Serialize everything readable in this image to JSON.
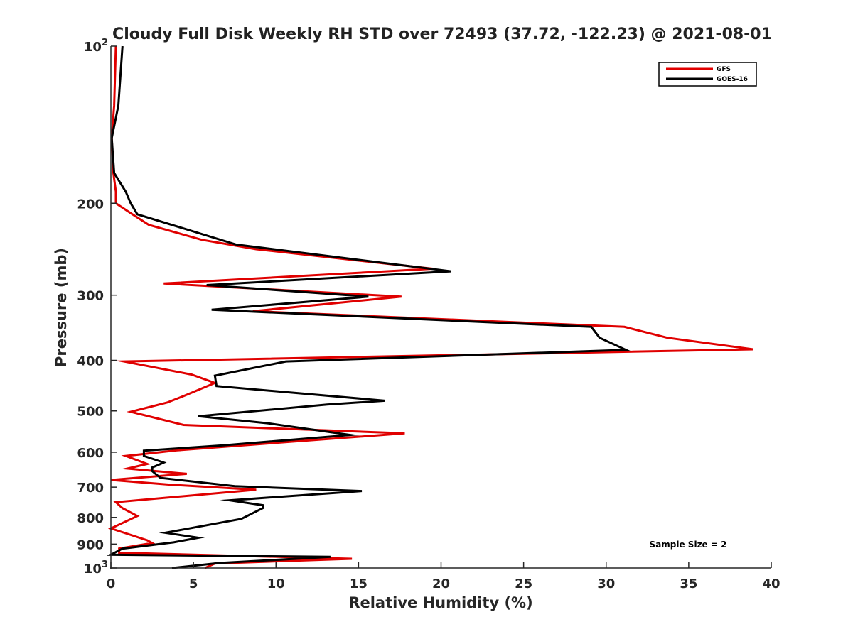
{
  "chart_data": {
    "type": "line",
    "title": "Cloudy Full Disk Weekly RH STD over 72493 (37.72, -122.23) @ 2021-08-01",
    "xlabel": "Relative Humidity (%)",
    "ylabel": "Pressure (mb)",
    "xlim": [
      0,
      40
    ],
    "ylim": [
      100,
      1000
    ],
    "y_scale": "log",
    "y_reversed": true,
    "x_ticks": [
      0,
      5,
      10,
      15,
      20,
      25,
      30,
      35,
      40
    ],
    "y_ticks": [
      {
        "value": 100,
        "label": "10",
        "sup": "2"
      },
      {
        "value": 200,
        "label": "200"
      },
      {
        "value": 300,
        "label": "300"
      },
      {
        "value": 400,
        "label": "400"
      },
      {
        "value": 500,
        "label": "500"
      },
      {
        "value": 600,
        "label": "600"
      },
      {
        "value": 700,
        "label": "700"
      },
      {
        "value": 800,
        "label": "800"
      },
      {
        "value": 900,
        "label": "900"
      },
      {
        "value": 1000,
        "label": "10",
        "sup": "3"
      }
    ],
    "grid": false,
    "legend_position": "top-right",
    "annotation": "Sample Size = 2",
    "series": [
      {
        "name": "GFS",
        "color": "#e00000",
        "points": [
          [
            0.3,
            100
          ],
          [
            0.2,
            130
          ],
          [
            0.05,
            150
          ],
          [
            0.15,
            175
          ],
          [
            0.3,
            190
          ],
          [
            0.3,
            200
          ],
          [
            1.3,
            210
          ],
          [
            2.3,
            220
          ],
          [
            5.5,
            235
          ],
          [
            8.8,
            245
          ],
          [
            19.5,
            267
          ],
          [
            3.2,
            285
          ],
          [
            17.6,
            302
          ],
          [
            8.6,
            322
          ],
          [
            31.1,
            345
          ],
          [
            33.7,
            362
          ],
          [
            38.9,
            381
          ],
          [
            0.8,
            402
          ],
          [
            4.9,
            426
          ],
          [
            6.3,
            442
          ],
          [
            4.5,
            467
          ],
          [
            3.4,
            482
          ],
          [
            1.2,
            502
          ],
          [
            4.4,
            532
          ],
          [
            17.8,
            552
          ],
          [
            10.2,
            575
          ],
          [
            4.0,
            595
          ],
          [
            0.9,
            610
          ],
          [
            2.2,
            632
          ],
          [
            1.0,
            645
          ],
          [
            4.6,
            660
          ],
          [
            0.0,
            678
          ],
          [
            3.5,
            692
          ],
          [
            8.8,
            708
          ],
          [
            0.3,
            748
          ],
          [
            0.7,
            768
          ],
          [
            1.6,
            795
          ],
          [
            0.0,
            840
          ],
          [
            2.2,
            885
          ],
          [
            2.5,
            896
          ],
          [
            0.5,
            918
          ],
          [
            0.5,
            935
          ],
          [
            14.6,
            960
          ],
          [
            6.3,
            980
          ],
          [
            5.7,
            1000
          ]
        ]
      },
      {
        "name": "GOES-16",
        "color": "#000000",
        "points": [
          [
            0.7,
            100
          ],
          [
            0.45,
            130
          ],
          [
            0.05,
            150
          ],
          [
            0.2,
            175
          ],
          [
            0.9,
            190
          ],
          [
            1.2,
            200
          ],
          [
            1.6,
            210
          ],
          [
            7.6,
            240
          ],
          [
            20.6,
            270
          ],
          [
            5.8,
            287
          ],
          [
            15.6,
            302
          ],
          [
            6.1,
            320
          ],
          [
            29.1,
            345
          ],
          [
            29.6,
            362
          ],
          [
            31.2,
            382
          ],
          [
            10.6,
            402
          ],
          [
            6.3,
            428
          ],
          [
            6.4,
            448
          ],
          [
            16.6,
            478
          ],
          [
            13.1,
            486
          ],
          [
            5.3,
            512
          ],
          [
            9.5,
            528
          ],
          [
            14.5,
            556
          ],
          [
            6.8,
            582
          ],
          [
            2.0,
            596
          ],
          [
            2.0,
            610
          ],
          [
            3.2,
            628
          ],
          [
            2.5,
            642
          ],
          [
            2.5,
            652
          ],
          [
            3.0,
            672
          ],
          [
            7.5,
            697
          ],
          [
            15.2,
            712
          ],
          [
            7.2,
            742
          ],
          [
            9.2,
            758
          ],
          [
            9.2,
            768
          ],
          [
            7.9,
            805
          ],
          [
            3.3,
            856
          ],
          [
            5.3,
            875
          ],
          [
            3.8,
            893
          ],
          [
            0.7,
            918
          ],
          [
            0.0,
            943
          ],
          [
            13.3,
            952
          ],
          [
            6.6,
            978
          ],
          [
            3.7,
            1000
          ]
        ]
      }
    ]
  }
}
